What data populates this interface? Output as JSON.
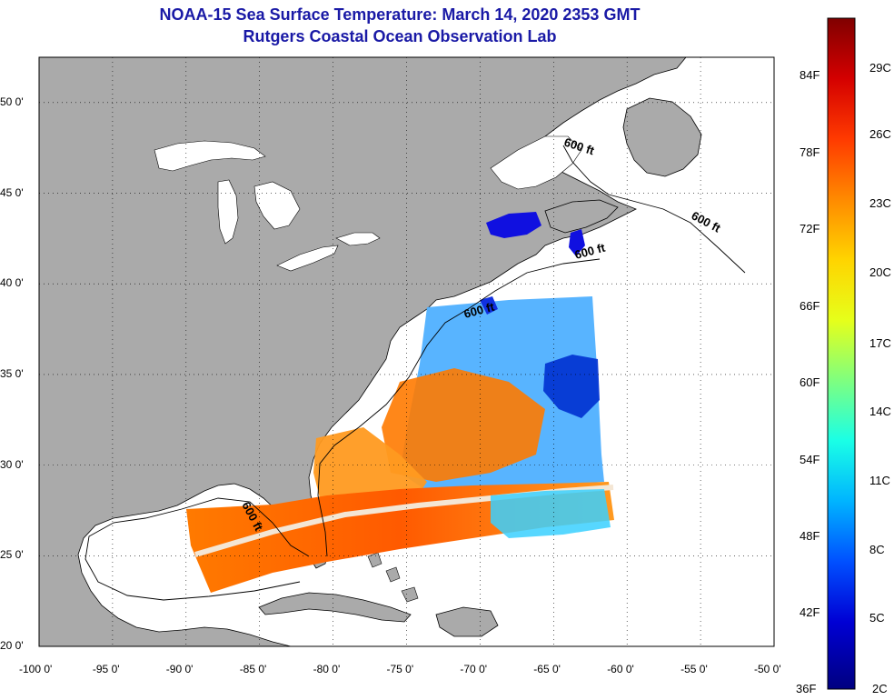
{
  "title": {
    "line1": "NOAA-15 Sea Surface Temperature:  March 14, 2020 2353 GMT",
    "line2": "Rutgers Coastal Ocean Observation Lab"
  },
  "colors": {
    "title_text": "#1a1aa6",
    "land": "#aaaaaa",
    "ocean_no_data": "#ffffff",
    "coastline": "#000000"
  },
  "map": {
    "lon_ticks": [
      "-100 0'",
      "-95 0'",
      "-90 0'",
      "-85 0'",
      "-80 0'",
      "-75 0'",
      "-70 0'",
      "-65 0'",
      "-60 0'",
      "-55 0'",
      "-50 0'"
    ],
    "lat_ticks": [
      "50 0'",
      "45 0'",
      "40 0'",
      "35 0'",
      "30 0'",
      "25 0'",
      "20 0'"
    ],
    "isobath_labels": [
      "600 ft",
      "600 ft",
      "600 ft",
      "600 ft",
      "600 ft"
    ]
  },
  "colorbar": {
    "fahrenheit_labels": [
      "84F",
      "78F",
      "72F",
      "66F",
      "60F",
      "54F",
      "48F",
      "42F",
      "36F"
    ],
    "celsius_labels": [
      "29C",
      "26C",
      "23C",
      "20C",
      "17C",
      "14C",
      "11C",
      "8C",
      "5C",
      "2C"
    ],
    "gradient": [
      "#800000",
      "#d40000",
      "#ff3a00",
      "#ff8a00",
      "#ffd400",
      "#e6ff1a",
      "#7fff7f",
      "#1affe6",
      "#00b4ff",
      "#0050ff",
      "#0000d4",
      "#000080"
    ]
  }
}
